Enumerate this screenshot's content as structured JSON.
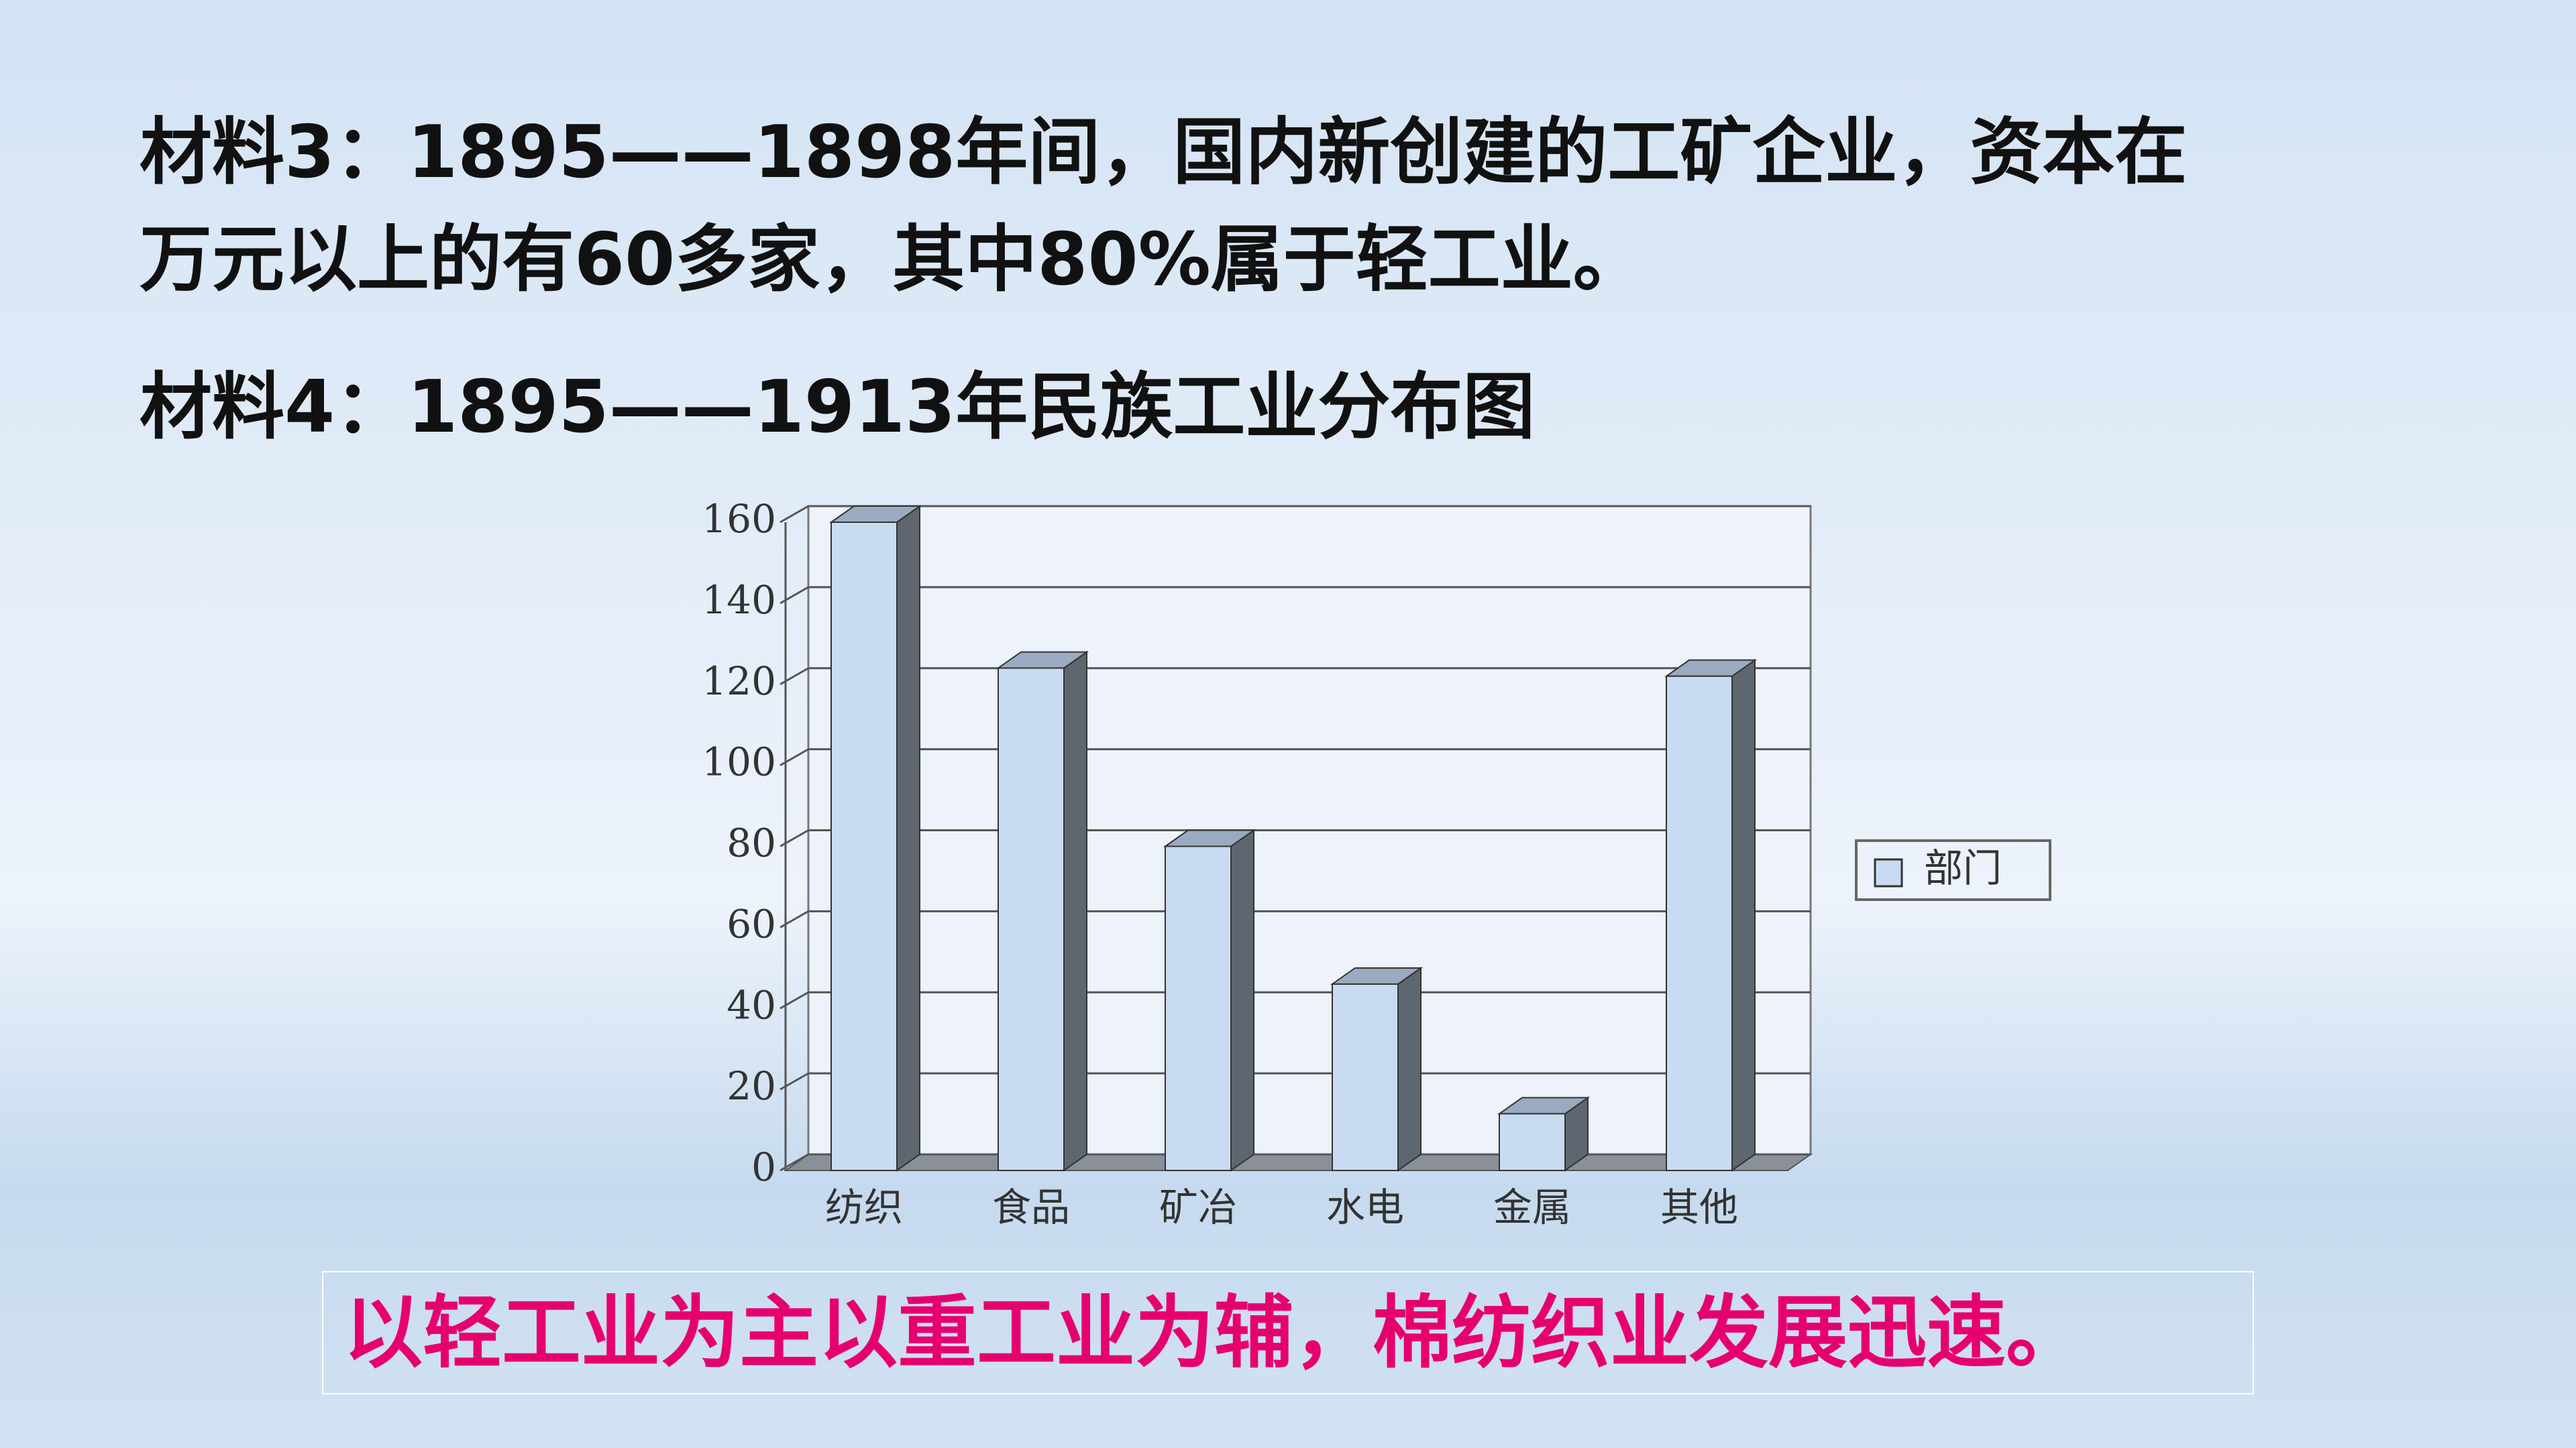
{
  "material3": [
    "材料3：1895——1898年间，国内新创建的工矿企业，资本在",
    "万元以上的有60多家，其中80%属于轻工业。"
  ],
  "material4": "材料4：1895——1913年民族工业分布图",
  "chart_data": {
    "type": "bar3d",
    "categories": [
      "纺织",
      "食品",
      "矿冶",
      "水电",
      "金属",
      "其他"
    ],
    "series": [
      {
        "name": "部门",
        "color": "#c9dbf2",
        "values": [
          160,
          124,
          80,
          46,
          14,
          122
        ]
      }
    ],
    "ylim": [
      0,
      160
    ],
    "yticks": [
      0,
      20,
      40,
      60,
      80,
      100,
      120,
      140,
      160
    ],
    "grid": true,
    "legend": "right"
  },
  "conclusion": "以轻工业为主以重工业为辅，棉纺织业发展迅速。"
}
